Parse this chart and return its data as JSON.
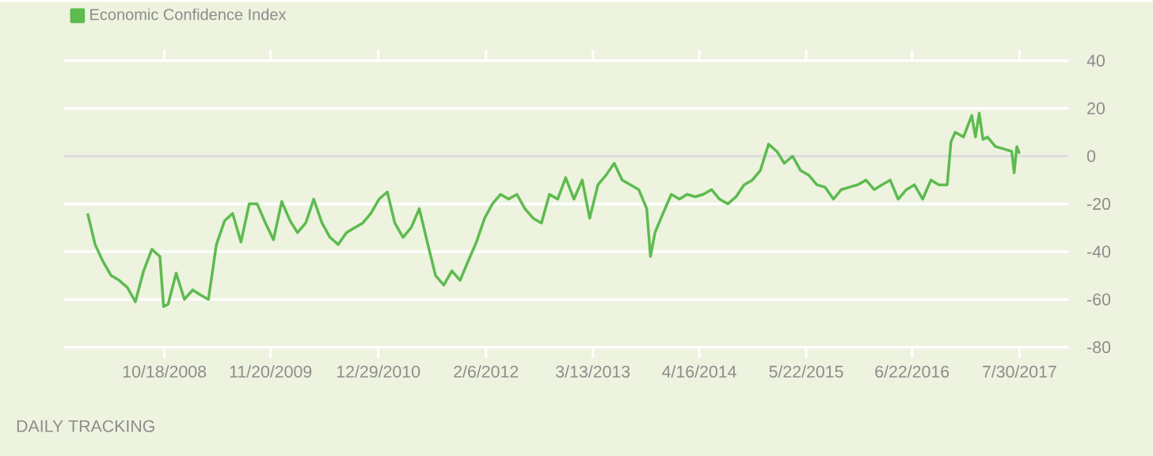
{
  "chart_data": {
    "type": "line",
    "x": [
      "2008-01-04",
      "2008-02-01",
      "2008-03-01",
      "2008-04-01",
      "2008-05-01",
      "2008-06-01",
      "2008-07-01",
      "2008-08-01",
      "2008-09-01",
      "2008-10-01",
      "2008-10-15",
      "2008-11-01",
      "2008-12-01",
      "2009-01-01",
      "2009-02-01",
      "2009-03-01",
      "2009-04-01",
      "2009-05-01",
      "2009-06-01",
      "2009-07-01",
      "2009-08-01",
      "2009-09-01",
      "2009-10-01",
      "2009-11-01",
      "2009-12-01",
      "2010-01-01",
      "2010-02-01",
      "2010-03-01",
      "2010-04-01",
      "2010-05-01",
      "2010-06-01",
      "2010-07-01",
      "2010-08-01",
      "2010-09-01",
      "2010-10-01",
      "2010-11-01",
      "2010-12-01",
      "2011-01-01",
      "2011-02-01",
      "2011-03-01",
      "2011-04-01",
      "2011-05-01",
      "2011-06-01",
      "2011-07-01",
      "2011-08-01",
      "2011-09-01",
      "2011-10-01",
      "2011-11-01",
      "2011-12-01",
      "2012-01-01",
      "2012-02-01",
      "2012-03-01",
      "2012-04-01",
      "2012-05-01",
      "2012-06-01",
      "2012-07-01",
      "2012-08-01",
      "2012-09-01",
      "2012-10-01",
      "2012-11-01",
      "2012-12-01",
      "2013-01-01",
      "2013-02-01",
      "2013-03-01",
      "2013-04-01",
      "2013-05-01",
      "2013-06-01",
      "2013-07-01",
      "2013-08-01",
      "2013-09-01",
      "2013-10-01",
      "2013-10-15",
      "2013-11-01",
      "2013-12-01",
      "2014-01-01",
      "2014-02-01",
      "2014-03-01",
      "2014-04-01",
      "2014-05-01",
      "2014-06-01",
      "2014-07-01",
      "2014-08-01",
      "2014-09-01",
      "2014-10-01",
      "2014-11-01",
      "2014-12-01",
      "2015-01-01",
      "2015-02-01",
      "2015-03-01",
      "2015-04-01",
      "2015-05-01",
      "2015-06-01",
      "2015-07-01",
      "2015-08-01",
      "2015-09-01",
      "2015-10-01",
      "2015-11-01",
      "2015-12-01",
      "2016-01-01",
      "2016-02-01",
      "2016-03-01",
      "2016-04-01",
      "2016-05-01",
      "2016-06-01",
      "2016-07-01",
      "2016-08-01",
      "2016-09-01",
      "2016-10-01",
      "2016-11-01",
      "2016-11-15",
      "2016-12-01",
      "2017-01-01",
      "2017-02-01",
      "2017-02-15",
      "2017-03-01",
      "2017-03-15",
      "2017-04-01",
      "2017-05-01",
      "2017-06-01",
      "2017-07-01",
      "2017-07-10",
      "2017-07-20",
      "2017-07-30"
    ],
    "series": [
      {
        "name": "Economic Confidence Index",
        "color": "#5dbb4f",
        "values": [
          -24,
          -37,
          -44,
          -50,
          -52,
          -55,
          -61,
          -48,
          -39,
          -42,
          -63,
          -62,
          -49,
          -60,
          -56,
          -58,
          -60,
          -37,
          -27,
          -24,
          -36,
          -20,
          -20,
          -28,
          -35,
          -19,
          -27,
          -32,
          -28,
          -18,
          -28,
          -34,
          -37,
          -32,
          -30,
          -28,
          -24,
          -18,
          -15,
          -28,
          -34,
          -30,
          -22,
          -36,
          -50,
          -54,
          -48,
          -52,
          -44,
          -36,
          -26,
          -20,
          -16,
          -18,
          -16,
          -22,
          -26,
          -28,
          -16,
          -18,
          -9,
          -18,
          -10,
          -26,
          -12,
          -8,
          -3,
          -10,
          -12,
          -14,
          -22,
          -42,
          -32,
          -24,
          -16,
          -18,
          -16,
          -17,
          -16,
          -14,
          -18,
          -20,
          -17,
          -12,
          -10,
          -6,
          5,
          2,
          -3,
          0,
          -6,
          -8,
          -12,
          -13,
          -18,
          -14,
          -13,
          -12,
          -10,
          -14,
          -12,
          -10,
          -18,
          -14,
          -12,
          -18,
          -10,
          -12,
          -12,
          6,
          10,
          8,
          17,
          8,
          18,
          7,
          8,
          4,
          3,
          2,
          -7,
          4,
          1
        ]
      }
    ],
    "xlim": [
      "2007-10-05",
      "2018-01-30"
    ],
    "xticks": [
      {
        "value": "2008-10-18",
        "label": "10/18/2008"
      },
      {
        "value": "2009-11-20",
        "label": "11/20/2009"
      },
      {
        "value": "2010-12-29",
        "label": "12/29/2010"
      },
      {
        "value": "2012-02-06",
        "label": "2/6/2012"
      },
      {
        "value": "2013-03-13",
        "label": "3/13/2013"
      },
      {
        "value": "2014-04-16",
        "label": "4/16/2014"
      },
      {
        "value": "2015-05-22",
        "label": "5/22/2015"
      },
      {
        "value": "2016-06-22",
        "label": "6/22/2016"
      },
      {
        "value": "2017-07-30",
        "label": "7/30/2017"
      }
    ],
    "ylim": [
      -80,
      40
    ],
    "yticks": [
      40,
      20,
      0,
      -20,
      -40,
      -60,
      -80
    ],
    "grid": "y",
    "legend": "top left",
    "marker": "none",
    "line_style": "solid",
    "ref_lines": [
      {
        "axis": "y",
        "value": 0,
        "color": "#dcdcdc"
      }
    ],
    "annotations": [
      "DAILY TRACKING"
    ]
  }
}
